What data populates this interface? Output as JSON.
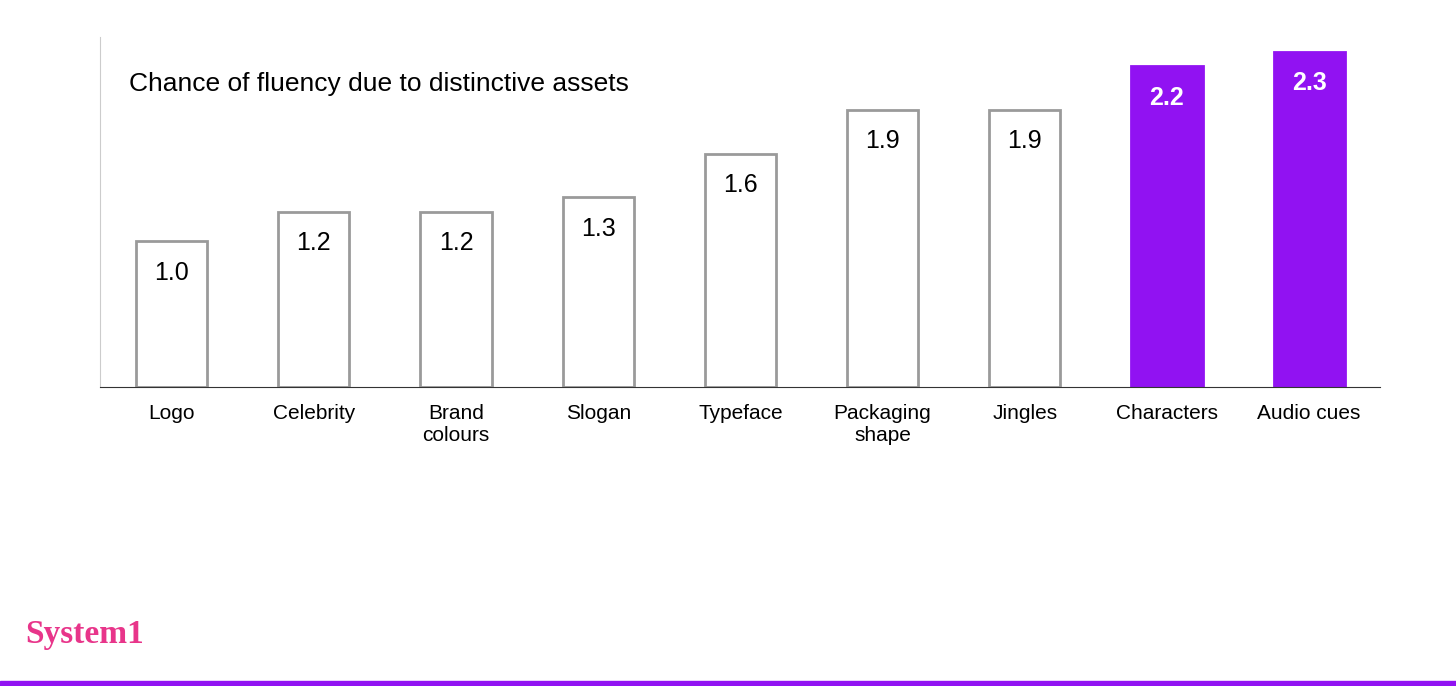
{
  "chart_data": {
    "type": "bar",
    "title": "Chance of fluency due to distinctive assets",
    "categories": [
      "Logo",
      "Celebrity",
      "Brand colours",
      "Slogan",
      "Typeface",
      "Packaging shape",
      "Jingles",
      "Characters",
      "Audio cues"
    ],
    "values": [
      1.0,
      1.2,
      1.2,
      1.3,
      1.6,
      1.9,
      1.9,
      2.2,
      2.3
    ],
    "value_labels": [
      "1.0",
      "1.2",
      "1.2",
      "1.3",
      "1.6",
      "1.9",
      "1.9",
      "2.2",
      "2.3"
    ],
    "colors": [
      "#ffffff",
      "#ffffff",
      "#ffffff",
      "#ffffff",
      "#ffffff",
      "#ffffff",
      "#ffffff",
      "#9112f2",
      "#9112f2"
    ],
    "ylim": [
      0,
      2.4
    ],
    "yticks": [],
    "grid": false,
    "data_labels": true,
    "tick_labels": "x",
    "annotations": [
      "System1"
    ]
  }
}
